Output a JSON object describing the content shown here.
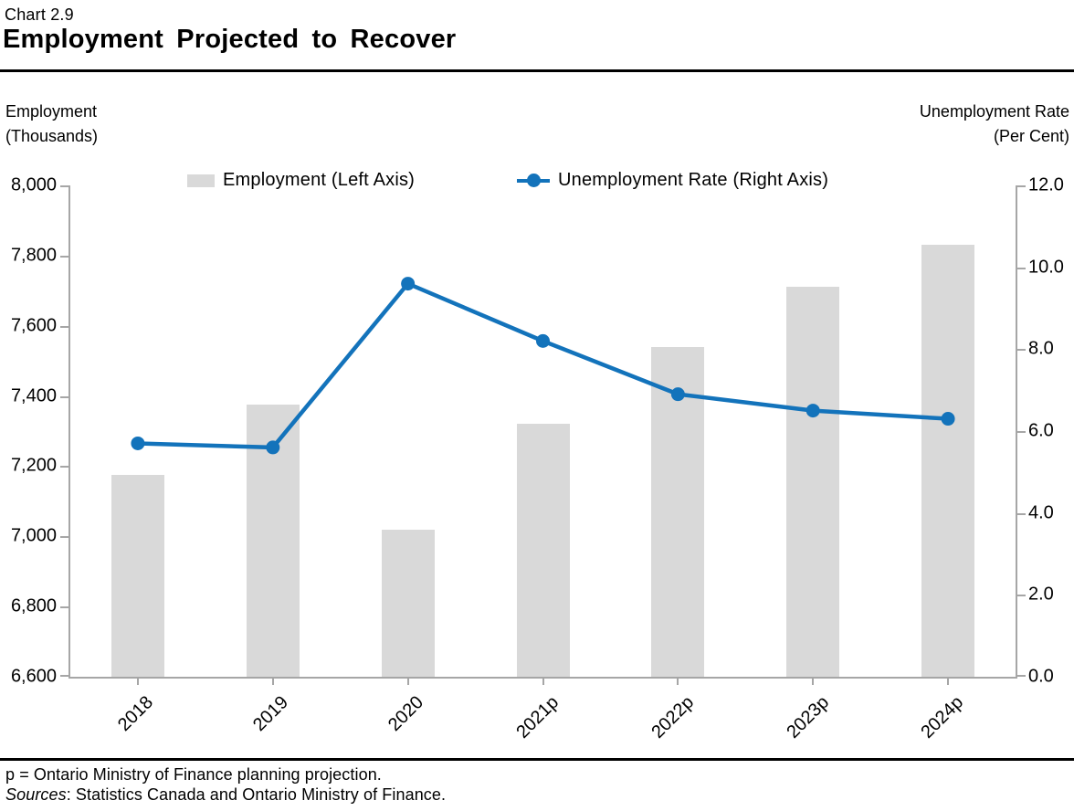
{
  "header": {
    "chart_number": "Chart 2.9",
    "title": "Employment Projected to Recover"
  },
  "axis_labels": {
    "left": [
      "Employment",
      "(Thousands)"
    ],
    "right": [
      "Unemployment Rate",
      "(Per Cent)"
    ]
  },
  "legend": {
    "employment": "Employment (Left Axis)",
    "unemployment": "Unemployment Rate (Right Axis)"
  },
  "footnotes": {
    "projection_note": "p = Ontario Ministry of Finance planning projection.",
    "sources_label": "Sources",
    "sources_rest": ": Statistics Canada and Ontario Ministry of Finance."
  },
  "colors": {
    "bar": "#d9d9d9",
    "line": "#1373bb",
    "axis": "#a6a6a6",
    "text": "#000000"
  },
  "chart_data": {
    "type": "bar+line combo",
    "title": "Employment Projected to Recover",
    "categories": [
      "2018",
      "2019",
      "2020",
      "2021p",
      "2022p",
      "2023p",
      "2024p"
    ],
    "series": [
      {
        "name": "Employment (Left Axis)",
        "type": "bar",
        "axis": "left",
        "unit": "thousands",
        "values": [
          7175,
          7375,
          7020,
          7320,
          7540,
          7710,
          7830
        ]
      },
      {
        "name": "Unemployment Rate (Right Axis)",
        "type": "line",
        "axis": "right",
        "unit": "per cent",
        "values": [
          5.7,
          5.6,
          9.6,
          8.2,
          6.9,
          6.5,
          6.3
        ]
      }
    ],
    "left_axis": {
      "label": "Employment (Thousands)",
      "min": 6600,
      "max": 8000,
      "tick_step": 200,
      "tick_labels": [
        "8,000",
        "7,800",
        "7,600",
        "7,400",
        "7,200",
        "7,000",
        "6,800",
        "6,600"
      ]
    },
    "right_axis": {
      "label": "Unemployment Rate (Per Cent)",
      "min": 0,
      "max": 12,
      "tick_step": 2,
      "tick_labels": [
        "12.0",
        "10.0",
        "8.0",
        "6.0",
        "4.0",
        "2.0",
        "0.0"
      ]
    },
    "legend_position": "top",
    "grid": false
  }
}
